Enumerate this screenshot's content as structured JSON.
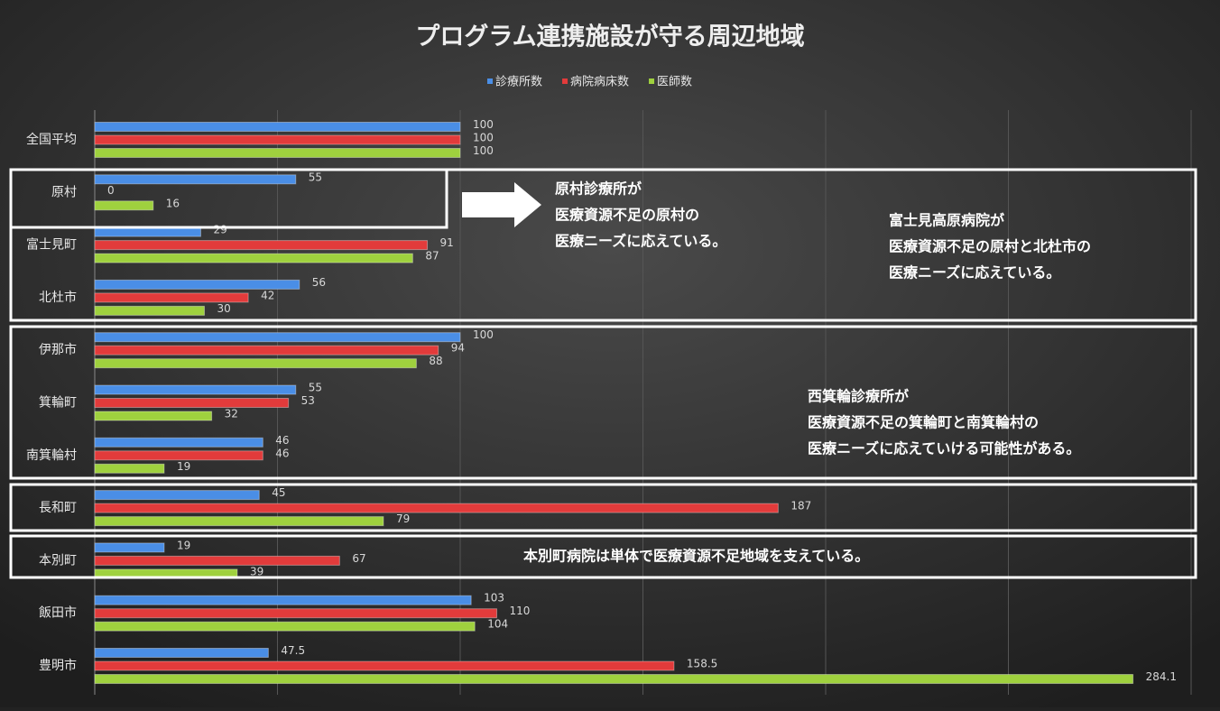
{
  "chart_data": {
    "type": "bar",
    "orientation": "horizontal",
    "title": "プログラム連携施設が守る周辺地域",
    "categories": [
      "全国平均",
      "原村",
      "富士見町",
      "北杜市",
      "伊那市",
      "箕輪町",
      "南箕輪村",
      "長和町",
      "本別町",
      "飯田市",
      "豊明市"
    ],
    "series": [
      {
        "name": "診療所数",
        "color": "#4a8ee6",
        "values": [
          100,
          55,
          29,
          56,
          100,
          55,
          46,
          45,
          19,
          103,
          47.5
        ]
      },
      {
        "name": "病院病床数",
        "color": "#e23b3b",
        "values": [
          100,
          0,
          91,
          42,
          94,
          53,
          46,
          187,
          67,
          110,
          158.5
        ]
      },
      {
        "name": "医師数",
        "color": "#9fd13e",
        "values": [
          100,
          16,
          87,
          30,
          88,
          32,
          19,
          79,
          39,
          104,
          284.1
        ]
      }
    ],
    "xlim": [
      0,
      300
    ],
    "xticks": [
      0,
      50,
      100,
      150,
      200,
      250,
      300
    ],
    "grid": true,
    "legend": "top",
    "annotations": [
      {
        "lines": [
          "原村診療所が",
          "医療資源不足の原村の",
          "医療ニーズに応えている。"
        ]
      },
      {
        "lines": [
          "富士見高原病院が",
          "医療資源不足の原村と北杜市の",
          "医療ニーズに応えている。"
        ]
      },
      {
        "lines": [
          "西箕輪診療所が",
          "医療資源不足の箕輪町と南箕輪村の",
          "医療ニーズに応えていける可能性がある。"
        ]
      },
      {
        "lines": [
          "本別町病院は単体で医療資源不足地域を支えている。"
        ]
      }
    ]
  }
}
